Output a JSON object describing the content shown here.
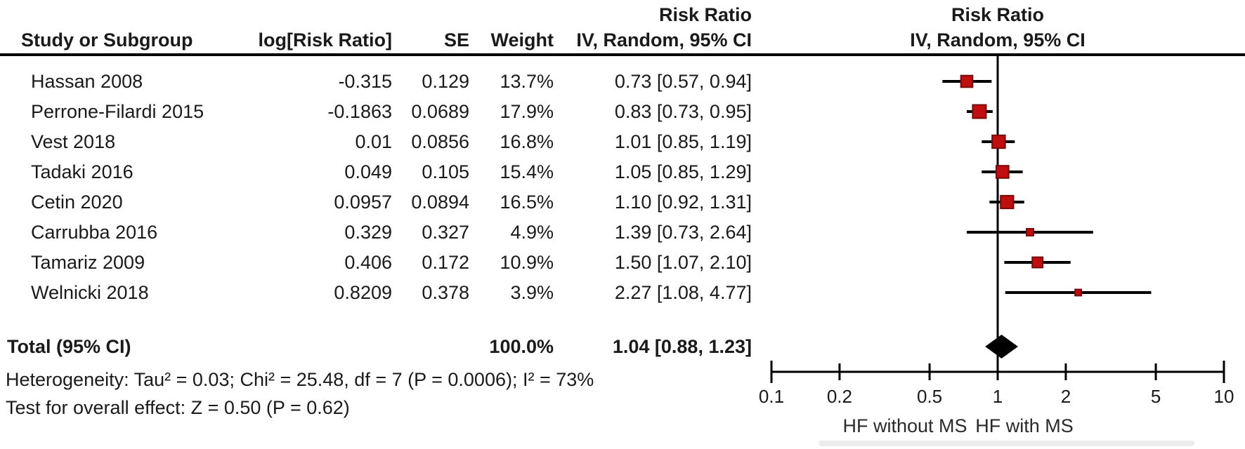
{
  "header": {
    "study_col": "Study or Subgroup",
    "logrr_col": "log[Risk Ratio]",
    "se_col": "SE",
    "weight_col": "Weight",
    "stat_group_title": "Risk Ratio",
    "stat_group_sub": "IV, Random, 95% CI",
    "plot_group_title": "Risk Ratio",
    "plot_group_sub": "IV, Random, 95% CI"
  },
  "table": {
    "rows": [
      {
        "study": "Hassan 2008",
        "logrr": "-0.315",
        "se": "0.129",
        "weight": "13.7%",
        "ci": "0.73 [0.57, 0.94]"
      },
      {
        "study": "Perrone-Filardi 2015",
        "logrr": "-0.1863",
        "se": "0.0689",
        "weight": "17.9%",
        "ci": "0.83 [0.73, 0.95]"
      },
      {
        "study": "Vest 2018",
        "logrr": "0.01",
        "se": "0.0856",
        "weight": "16.8%",
        "ci": "1.01 [0.85, 1.19]"
      },
      {
        "study": "Tadaki 2016",
        "logrr": "0.049",
        "se": "0.105",
        "weight": "15.4%",
        "ci": "1.05 [0.85, 1.29]"
      },
      {
        "study": "Cetin 2020",
        "logrr": "0.0957",
        "se": "0.0894",
        "weight": "16.5%",
        "ci": "1.10 [0.92, 1.31]"
      },
      {
        "study": "Carrubba 2016",
        "logrr": "0.329",
        "se": "0.327",
        "weight": "4.9%",
        "ci": "1.39 [0.73, 2.64]"
      },
      {
        "study": "Tamariz 2009",
        "logrr": "0.406",
        "se": "0.172",
        "weight": "10.9%",
        "ci": "1.50 [1.07, 2.10]"
      },
      {
        "study": "Welnicki 2018",
        "logrr": "0.8209",
        "se": "0.378",
        "weight": "3.9%",
        "ci": "2.27 [1.08, 4.77]"
      }
    ],
    "total": {
      "label": "Total (95% CI)",
      "weight": "100.0%",
      "ci": "1.04 [0.88, 1.23]"
    }
  },
  "footer": {
    "heterogeneity": "Heterogeneity: Tau² = 0.03; Chi² = 25.48, df = 7 (P = 0.0006); I² = 73%",
    "overall_effect": "Test for overall effect: Z = 0.50 (P = 0.62)"
  },
  "chart_data": {
    "type": "scatter",
    "subtype": "forest-plot",
    "effect_measure": "Risk Ratio",
    "model": "IV, Random, 95% CI",
    "x_scale": "log10",
    "x_range": [
      0.1,
      10
    ],
    "x_ticks": [
      0.1,
      0.2,
      0.5,
      1,
      2,
      5,
      10
    ],
    "null_line": 1,
    "axis_label_left": "HF without MS",
    "axis_label_right": "HF with MS",
    "studies": [
      {
        "name": "Hassan 2008",
        "rr": 0.73,
        "ci_low": 0.57,
        "ci_high": 0.94,
        "weight": 13.7
      },
      {
        "name": "Perrone-Filardi 2015",
        "rr": 0.83,
        "ci_low": 0.73,
        "ci_high": 0.95,
        "weight": 17.9
      },
      {
        "name": "Vest 2018",
        "rr": 1.01,
        "ci_low": 0.85,
        "ci_high": 1.19,
        "weight": 16.8
      },
      {
        "name": "Tadaki 2016",
        "rr": 1.05,
        "ci_low": 0.85,
        "ci_high": 1.29,
        "weight": 15.4
      },
      {
        "name": "Cetin 2020",
        "rr": 1.1,
        "ci_low": 0.92,
        "ci_high": 1.31,
        "weight": 16.5
      },
      {
        "name": "Carrubba 2016",
        "rr": 1.39,
        "ci_low": 0.73,
        "ci_high": 2.64,
        "weight": 4.9
      },
      {
        "name": "Tamariz 2009",
        "rr": 1.5,
        "ci_low": 1.07,
        "ci_high": 2.1,
        "weight": 10.9
      },
      {
        "name": "Welnicki 2018",
        "rr": 2.27,
        "ci_low": 1.08,
        "ci_high": 4.77,
        "weight": 3.9
      }
    ],
    "total": {
      "name": "Total (95% CI)",
      "rr": 1.04,
      "ci_low": 0.88,
      "ci_high": 1.23,
      "weight": 100.0
    },
    "heterogeneity": {
      "tau2": 0.03,
      "chi2": 25.48,
      "df": 7,
      "p": "0.0006",
      "i2": "73%"
    },
    "overall_effect": {
      "z": 0.5,
      "p": 0.62
    }
  },
  "colors": {
    "marker": "#c00d0d",
    "marker_border": "#7a0a0a",
    "diamond": "#000000",
    "line": "#000000",
    "text": "#1a1a1a"
  }
}
